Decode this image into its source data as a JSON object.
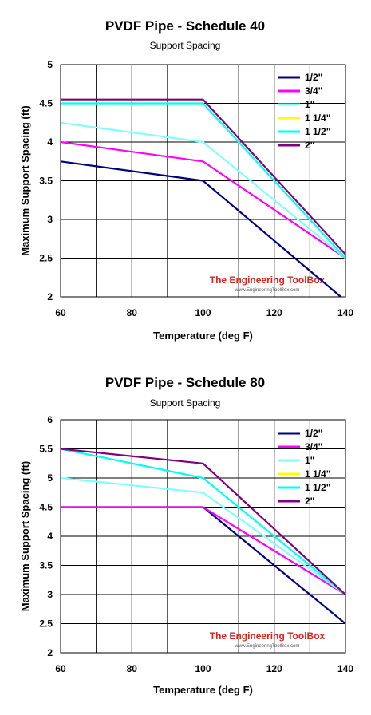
{
  "watermark": {
    "brand": "The Engineering ToolBox",
    "url": "www.EngineeringToolBox.com"
  },
  "chart_data": [
    {
      "type": "line",
      "title": "PVDF Pipe - Schedule 40",
      "subtitle": "Support Spacing",
      "xlabel": "Temperature (deg F)",
      "ylabel": "Maximum  Support Spacing (ft)",
      "xlim": [
        60,
        140
      ],
      "ylim": [
        2,
        5
      ],
      "xticks": [
        "60",
        "80",
        "100",
        "120",
        "140"
      ],
      "yticks": [
        "2",
        "2.5",
        "3",
        "3.5",
        "4",
        "4.5",
        "5"
      ],
      "grid": true,
      "legend_position": "top-right",
      "series": [
        {
          "name": "1/2\"",
          "color": "#000080",
          "x": [
            60,
            100,
            140
          ],
          "y": [
            3.75,
            3.5,
            1.95
          ]
        },
        {
          "name": "3/4\"",
          "color": "#ff00ff",
          "x": [
            60,
            100,
            140
          ],
          "y": [
            4.0,
            3.75,
            2.5
          ]
        },
        {
          "name": "1\"",
          "color": "#80ffff",
          "x": [
            60,
            100,
            140
          ],
          "y": [
            4.25,
            4.0,
            2.5
          ]
        },
        {
          "name": "1 1/4\"",
          "color": "#ffff00",
          "x": [
            60,
            100,
            140
          ],
          "y": [
            4.5,
            4.5,
            2.5
          ]
        },
        {
          "name": "1 1/2\"",
          "color": "#00ffff",
          "x": [
            60,
            100,
            140
          ],
          "y": [
            4.5,
            4.5,
            2.5
          ]
        },
        {
          "name": "2\"",
          "color": "#800080",
          "x": [
            60,
            100,
            140
          ],
          "y": [
            4.55,
            4.55,
            2.55
          ]
        }
      ]
    },
    {
      "type": "line",
      "title": "PVDF Pipe - Schedule 80",
      "subtitle": "Support Spacing",
      "xlabel": "Temperature (deg F)",
      "ylabel": "Maximum  Support Spacing (ft)",
      "xlim": [
        60,
        140
      ],
      "ylim": [
        2,
        6
      ],
      "xticks": [
        "60",
        "80",
        "100",
        "120",
        "140"
      ],
      "yticks": [
        "2",
        "2.5",
        "3",
        "3.5",
        "4",
        "4.5",
        "5",
        "5.5",
        "6"
      ],
      "grid": true,
      "legend_position": "top-right",
      "series": [
        {
          "name": "1/2\"",
          "color": "#000080",
          "x": [
            60,
            100,
            140
          ],
          "y": [
            4.5,
            4.5,
            2.5
          ]
        },
        {
          "name": "3/4\"",
          "color": "#ff00ff",
          "x": [
            60,
            100,
            140
          ],
          "y": [
            4.5,
            4.5,
            3.0
          ]
        },
        {
          "name": "1\"",
          "color": "#80ffff",
          "x": [
            60,
            100,
            140
          ],
          "y": [
            5.0,
            4.75,
            3.0
          ]
        },
        {
          "name": "1 1/4\"",
          "color": "#ffff00",
          "x": [
            60,
            100,
            140
          ],
          "y": [
            5.5,
            5.0,
            3.0
          ]
        },
        {
          "name": "1 1/2\"",
          "color": "#00ffff",
          "x": [
            60,
            100,
            140
          ],
          "y": [
            5.5,
            5.0,
            3.0
          ]
        },
        {
          "name": "2\"",
          "color": "#800080",
          "x": [
            60,
            100,
            140
          ],
          "y": [
            5.5,
            5.25,
            3.0
          ]
        }
      ]
    }
  ]
}
